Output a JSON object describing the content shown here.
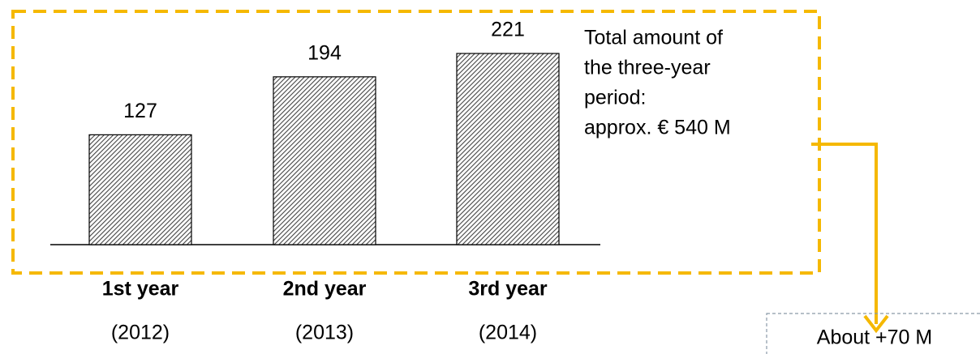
{
  "chart_data": {
    "type": "bar",
    "categories": [
      "1st year",
      "2nd year",
      "3rd year"
    ],
    "category_years": [
      "(2012)",
      "(2013)",
      "(2014)"
    ],
    "values": [
      127,
      194,
      221
    ],
    "color": "#555555",
    "annotation": [
      "Total amount of",
      "the three-year",
      "period:",
      "approx. € 540 M"
    ],
    "callout": "About +70 M"
  }
}
